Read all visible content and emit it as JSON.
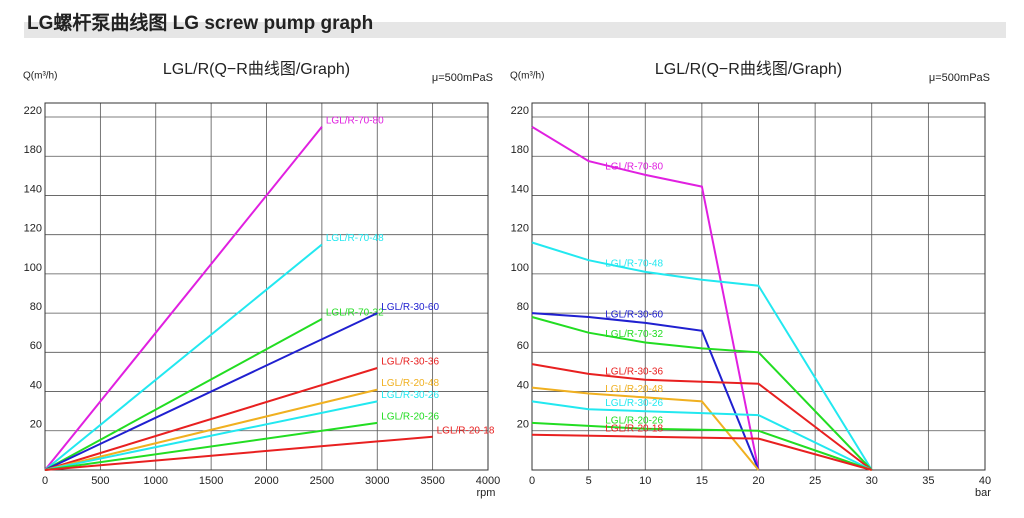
{
  "header": {
    "title": "LG螺杆泵曲线图 LG screw pump graph"
  },
  "chart_data": [
    {
      "type": "line",
      "title": "LGL/R(Q−R曲线图/Graph)",
      "ylabel": "Q(m³/h)",
      "note": "μ=500mPaS",
      "xlabel": "rpm",
      "xlim": [
        0,
        4000
      ],
      "xticks": [
        0,
        500,
        1000,
        1500,
        2000,
        2500,
        3000,
        3500,
        4000
      ],
      "ylim": [
        0,
        220
      ],
      "yticks": [
        20,
        40,
        60,
        80,
        100,
        120,
        140,
        180,
        220
      ],
      "grid": true,
      "series": [
        {
          "name": "LGL/R-70-80",
          "color": "#e020e0",
          "x": [
            0,
            2500
          ],
          "values": [
            0,
            210
          ]
        },
        {
          "name": "LGL/R-70-48",
          "color": "#22e8f0",
          "x": [
            0,
            2500
          ],
          "values": [
            0,
            115
          ]
        },
        {
          "name": "LGL/R-70-32",
          "color": "#22dd22",
          "x": [
            0,
            2500
          ],
          "values": [
            0,
            77
          ]
        },
        {
          "name": "LGL/R-30-60",
          "color": "#2020d0",
          "x": [
            0,
            3000
          ],
          "values": [
            0,
            80
          ]
        },
        {
          "name": "LGL/R-30-36",
          "color": "#e82020",
          "x": [
            0,
            3000
          ],
          "values": [
            0,
            52
          ]
        },
        {
          "name": "LGL/R-20-48",
          "color": "#f0b020",
          "x": [
            0,
            3000
          ],
          "values": [
            0,
            41
          ]
        },
        {
          "name": "LGL/R-30-26",
          "color": "#22e8f0",
          "x": [
            0,
            3000
          ],
          "values": [
            0,
            35
          ]
        },
        {
          "name": "LGL/R-20-26",
          "color": "#22dd22",
          "x": [
            0,
            3000
          ],
          "values": [
            0,
            24
          ]
        },
        {
          "name": "LGL/R-20-18",
          "color": "#e82020",
          "x": [
            0,
            3500
          ],
          "values": [
            0,
            17
          ]
        }
      ]
    },
    {
      "type": "line",
      "title": "LGL/R(Q−R曲线图/Graph)",
      "ylabel": "Q(m³/h)",
      "note": "μ=500mPaS",
      "xlabel": "bar",
      "xlim": [
        0,
        40
      ],
      "xticks": [
        0,
        5,
        10,
        15,
        20,
        25,
        30,
        35,
        40
      ],
      "ylim": [
        0,
        220
      ],
      "yticks": [
        20,
        40,
        60,
        80,
        100,
        120,
        140,
        180,
        220
      ],
      "grid": true,
      "series": [
        {
          "name": "LGL/R-70-80",
          "color": "#e020e0",
          "x": [
            0,
            5,
            10,
            15,
            20
          ],
          "values": [
            210,
            175,
            161,
            149,
            0
          ]
        },
        {
          "name": "LGL/R-70-48",
          "color": "#22e8f0",
          "x": [
            0,
            5,
            10,
            15,
            20,
            30
          ],
          "values": [
            116,
            107,
            101,
            97,
            94,
            0
          ]
        },
        {
          "name": "LGL/R-30-60",
          "color": "#2020d0",
          "x": [
            0,
            5,
            10,
            15,
            20
          ],
          "values": [
            80,
            78,
            75,
            71,
            0
          ]
        },
        {
          "name": "LGL/R-70-32",
          "color": "#22dd22",
          "x": [
            0,
            5,
            10,
            15,
            20,
            30
          ],
          "values": [
            78,
            70,
            65,
            62,
            60,
            0
          ]
        },
        {
          "name": "LGL/R-30-36",
          "color": "#e82020",
          "x": [
            0,
            5,
            10,
            15,
            20,
            30
          ],
          "values": [
            54,
            49,
            46,
            45,
            44,
            0
          ]
        },
        {
          "name": "LGL/R-20-48",
          "color": "#f0b020",
          "x": [
            0,
            5,
            10,
            15,
            20
          ],
          "values": [
            42,
            39,
            37,
            35,
            0
          ]
        },
        {
          "name": "LGL/R-30-26",
          "color": "#22e8f0",
          "x": [
            0,
            5,
            10,
            15,
            20,
            30
          ],
          "values": [
            35,
            31,
            30,
            29,
            28,
            0
          ]
        },
        {
          "name": "LGL/R-20-26",
          "color": "#22dd22",
          "x": [
            0,
            10,
            20,
            30
          ],
          "values": [
            24,
            21,
            20,
            0
          ]
        },
        {
          "name": "LGL/R-20-18",
          "color": "#e82020",
          "x": [
            0,
            10,
            20,
            30
          ],
          "values": [
            18,
            17,
            16,
            0
          ]
        }
      ]
    }
  ]
}
